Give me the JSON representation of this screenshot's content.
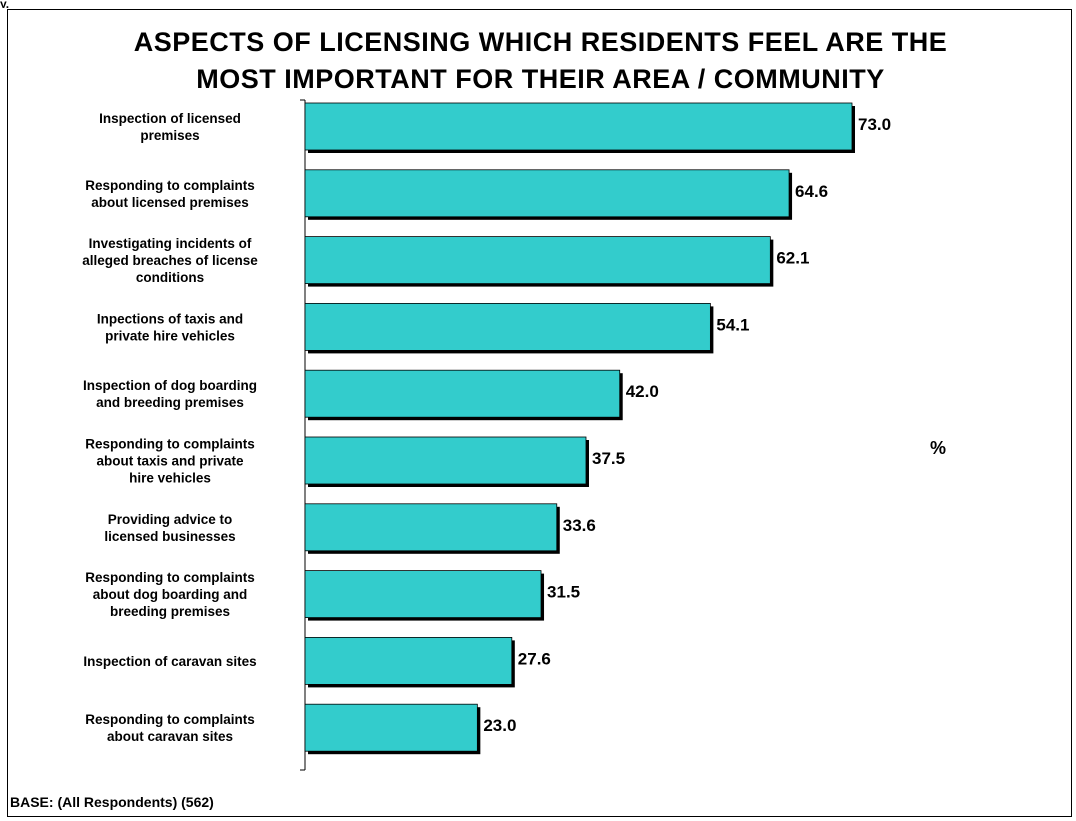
{
  "chart_data": {
    "type": "bar",
    "orientation": "horizontal",
    "title": "ASPECTS OF LICENSING WHICH RESIDENTS FEEL ARE THE MOST IMPORTANT FOR THEIR AREA / COMMUNITY",
    "title_lines": [
      "ASPECTS OF LICENSING WHICH RESIDENTS FEEL ARE THE",
      "MOST IMPORTANT FOR THEIR AREA / COMMUNITY"
    ],
    "unit_label": "%",
    "categories": [
      "Inspection of licensed premises",
      "Responding to complaints about licensed premises",
      "Investigating incidents of alleged breaches of license conditions",
      "Inpections of taxis and private hire vehicles",
      "Inspection of dog boarding and breeding premises",
      "Responding to complaints about taxis and private hire vehicles",
      "Providing advice to licensed businesses",
      "Responding to complaints about dog boarding and breeding premises",
      "Inspection of caravan sites",
      "Responding to complaints about caravan sites"
    ],
    "category_label_lines": [
      [
        "Inspection of licensed",
        "premises"
      ],
      [
        "Responding to complaints",
        "about licensed premises"
      ],
      [
        "Investigating incidents of",
        "alleged breaches of license",
        "conditions"
      ],
      [
        "Inpections of taxis and",
        "private hire vehicles"
      ],
      [
        "Inspection of dog boarding",
        "and breeding premises"
      ],
      [
        "Responding to complaints",
        "about taxis and private",
        "hire vehicles"
      ],
      [
        "Providing advice to",
        "licensed businesses"
      ],
      [
        "Responding to complaints",
        "about dog boarding and",
        "breeding premises"
      ],
      [
        "Inspection of caravan sites"
      ],
      [
        "Responding to complaints",
        "about caravan sites"
      ]
    ],
    "values": [
      73.0,
      64.6,
      62.1,
      54.1,
      42.0,
      37.5,
      33.6,
      31.5,
      27.6,
      23.0
    ],
    "value_labels": [
      "73.0",
      "64.6",
      "62.1",
      "54.1",
      "42.0",
      "37.5",
      "33.6",
      "31.5",
      "27.6",
      "23.0"
    ],
    "xlim": [
      0,
      100
    ],
    "grid": false,
    "legend": false,
    "colors": {
      "bar": "#33CCCC",
      "bar_border": "#000000",
      "shadow": "#000000"
    }
  },
  "footer": {
    "base_text": "BASE:  (All Respondents) (562)"
  },
  "top_clip_text": "y."
}
